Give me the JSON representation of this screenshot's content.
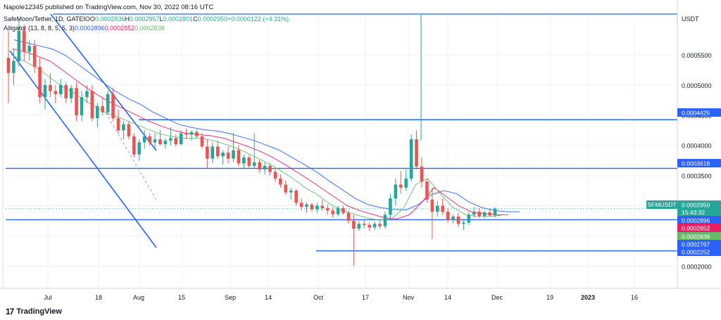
{
  "header": {
    "published": "Napole12345 published on TradingView.com, Nov 30, 2022 08:16 UTC",
    "symbol_line": "SafeMoon/Tether, 1D, GATEIO",
    "ohlc": [
      {
        "label": "O",
        "value": "0.0002836"
      },
      {
        "label": "H",
        "value": "0.0002957"
      },
      {
        "label": "L",
        "value": "0.0002801"
      },
      {
        "label": "C",
        "value": "0.0002950"
      }
    ],
    "change": "+0.0000122 (+4.31%)",
    "alligator_label": "Alligator (13, 8, 8, 5, 5, 3)",
    "alligator_values": [
      "0.0002896",
      "0.0002852",
      "0.0002838"
    ]
  },
  "footer": {
    "brand": "TradingView",
    "brand_mark": "17"
  },
  "colors": {
    "up": "#26a69a",
    "down": "#ef5350",
    "jaw": "#2962ff",
    "teeth": "#e91e63",
    "lips": "#66bb6a",
    "hline": "#2962ff",
    "grid": "#f0f3fa",
    "axis_text": "#131722"
  },
  "chart_data": {
    "type": "candlestick",
    "quote": "USDT",
    "symbol_tag": "SFMUSDT",
    "countdown": "15:43:32",
    "x_ticks": [
      "Jul",
      "18",
      "Aug",
      "15",
      "Sep",
      "14",
      "Oct",
      "17",
      "Nov",
      "14",
      "Dec",
      "19",
      "2023",
      "16"
    ],
    "y_ticks": [
      "0.0005500",
      "0.0005000",
      "0.0004500",
      "0.0004000",
      "0.0003500",
      "0.0003000",
      "0.0002500",
      "0.0002000"
    ],
    "ylim": [
      0.000163,
      0.00062
    ],
    "price_labels": [
      {
        "text": "0.0002950",
        "value": 0.000295,
        "color": "#26a69a"
      },
      {
        "text": "0.0002896",
        "value": 0.0002896,
        "color": "#2962ff"
      },
      {
        "text": "0.0002852",
        "value": 0.0002852,
        "color": "#e91e63"
      },
      {
        "text": "0.0002838",
        "value": 0.0002838,
        "color": "#66bb6a"
      },
      {
        "text": "0.0002767",
        "value": 0.0002767,
        "color": "#2962ff"
      },
      {
        "text": "0.0002252",
        "value": 0.0002252,
        "color": "#2962ff"
      },
      {
        "text": "0.0004425",
        "value": 0.0004425,
        "color": "#2962ff"
      },
      {
        "text": "0.0003618",
        "value": 0.0003618,
        "color": "#2962ff"
      }
    ],
    "horizontal_levels": [
      0.0004425,
      0.0003618,
      0.0002767,
      0.0002252
    ],
    "ohlc": [
      [
        0.000545,
        0.00059,
        0.00047,
        0.00052
      ],
      [
        0.00052,
        0.00056,
        0.0005,
        0.00054
      ],
      [
        0.00054,
        0.00061,
        0.00053,
        0.00059
      ],
      [
        0.00059,
        0.0006,
        0.00054,
        0.000555
      ],
      [
        0.000555,
        0.000575,
        0.00054,
        0.000565
      ],
      [
        0.000565,
        0.000575,
        0.00052,
        0.00053
      ],
      [
        0.00053,
        0.000545,
        0.00047,
        0.00048
      ],
      [
        0.00048,
        0.00051,
        0.00046,
        0.0005
      ],
      [
        0.0005,
        0.00052,
        0.00048,
        0.00049
      ],
      [
        0.00049,
        0.0005,
        0.00047,
        0.000485
      ],
      [
        0.000485,
        0.00051,
        0.00048,
        0.0005
      ],
      [
        0.0005,
        0.000505,
        0.00047,
        0.000478
      ],
      [
        0.000478,
        0.0005,
        0.00047,
        0.000495
      ],
      [
        0.000495,
        0.000505,
        0.00044,
        0.00045
      ],
      [
        0.00045,
        0.00049,
        0.00044,
        0.00048
      ],
      [
        0.00048,
        0.0005,
        0.00047,
        0.00049
      ],
      [
        0.00049,
        0.0005,
        0.00044,
        0.000445
      ],
      [
        0.000445,
        0.00047,
        0.00043,
        0.000465
      ],
      [
        0.000465,
        0.00048,
        0.00045,
        0.000455
      ],
      [
        0.000455,
        0.00049,
        0.00045,
        0.000485
      ],
      [
        0.000485,
        0.000495,
        0.00044,
        0.000445
      ],
      [
        0.000445,
        0.00046,
        0.00042,
        0.000425
      ],
      [
        0.000425,
        0.00044,
        0.00041,
        0.000435
      ],
      [
        0.000435,
        0.00044,
        0.00041,
        0.000415
      ],
      [
        0.000415,
        0.00042,
        0.00038,
        0.000385
      ],
      [
        0.000385,
        0.00041,
        0.000375,
        0.000405
      ],
      [
        0.000405,
        0.000425,
        0.000395,
        0.000415
      ],
      [
        0.000415,
        0.00042,
        0.0004,
        0.000405
      ],
      [
        0.000405,
        0.00042,
        0.000395,
        0.00041
      ],
      [
        0.00041,
        0.000425,
        0.0004,
        0.000402
      ],
      [
        0.000402,
        0.000412,
        0.000395,
        0.000408
      ],
      [
        0.000408,
        0.00043,
        0.0004,
        0.000412
      ],
      [
        0.000412,
        0.000418,
        0.000398,
        0.000402
      ],
      [
        0.000402,
        0.000425,
        0.0004,
        0.00042
      ],
      [
        0.00042,
        0.000428,
        0.00041,
        0.000418
      ],
      [
        0.000418,
        0.000425,
        0.000408,
        0.000422
      ],
      [
        0.000422,
        0.000426,
        0.000412,
        0.000415
      ],
      [
        0.000415,
        0.00042,
        0.000395,
        0.000398
      ],
      [
        0.000398,
        0.00041,
        0.000362,
        0.000378
      ],
      [
        0.000378,
        0.000405,
        0.00037,
        0.000398
      ],
      [
        0.000398,
        0.000408,
        0.000378,
        0.000382
      ],
      [
        0.000382,
        0.000392,
        0.000368,
        0.000388
      ],
      [
        0.000388,
        0.000398,
        0.00037,
        0.000378
      ],
      [
        0.000378,
        0.00042,
        0.000372,
        0.000392
      ],
      [
        0.000392,
        0.0004,
        0.000365,
        0.00037
      ],
      [
        0.00037,
        0.000385,
        0.000362,
        0.00038
      ],
      [
        0.00038,
        0.000384,
        0.000362,
        0.000366
      ],
      [
        0.000366,
        0.00042,
        0.000362,
        0.000372
      ],
      [
        0.000372,
        0.000376,
        0.000355,
        0.00036
      ],
      [
        0.00036,
        0.000372,
        0.000352,
        0.000366
      ],
      [
        0.000366,
        0.00037,
        0.00035,
        0.000356
      ],
      [
        0.000356,
        0.000362,
        0.00034,
        0.000345
      ],
      [
        0.000345,
        0.000352,
        0.00033,
        0.000335
      ],
      [
        0.000335,
        0.000342,
        0.000318,
        0.000322
      ],
      [
        0.000322,
        0.00033,
        0.00031,
        0.000325
      ],
      [
        0.000325,
        0.000328,
        0.0003,
        0.000305
      ],
      [
        0.000305,
        0.000312,
        0.000292,
        0.000298
      ],
      [
        0.000298,
        0.000306,
        0.000288,
        0.000302
      ],
      [
        0.000302,
        0.000305,
        0.00029,
        0.000294
      ],
      [
        0.000294,
        0.000305,
        0.000288,
        0.0003
      ],
      [
        0.0003,
        0.00031,
        0.000292,
        0.000296
      ],
      [
        0.000296,
        0.000302,
        0.000285,
        0.000292
      ],
      [
        0.000292,
        0.000298,
        0.00028,
        0.000286
      ],
      [
        0.000286,
        0.0003,
        0.000282,
        0.000296
      ],
      [
        0.000296,
        0.0003,
        0.000285,
        0.000288
      ],
      [
        0.000288,
        0.000292,
        0.00027,
        0.000275
      ],
      [
        0.000275,
        0.000285,
        0.0002,
        0.000262
      ],
      [
        0.000262,
        0.000275,
        0.000258,
        0.00027
      ],
      [
        0.00027,
        0.000276,
        0.000262,
        0.000268
      ],
      [
        0.000268,
        0.000272,
        0.000258,
        0.000264
      ],
      [
        0.000264,
        0.000274,
        0.00026,
        0.00027
      ],
      [
        0.00027,
        0.000275,
        0.000262,
        0.000266
      ],
      [
        0.000266,
        0.00029,
        0.000262,
        0.000285
      ],
      [
        0.000285,
        0.00032,
        0.00028,
        0.000312
      ],
      [
        0.000312,
        0.000345,
        0.0003,
        0.000335
      ],
      [
        0.000335,
        0.000358,
        0.00032,
        0.00033
      ],
      [
        0.00033,
        0.00036,
        0.000325,
        0.000345
      ],
      [
        0.000345,
        0.000418,
        0.00034,
        0.00041
      ],
      [
        0.00041,
        0.000425,
        0.00036,
        0.000365
      ],
      [
        0.000365,
        0.00038,
        0.00033,
        0.00034
      ],
      [
        0.00034,
        0.000345,
        0.000305,
        0.00031
      ],
      [
        0.00031,
        0.00033,
        0.000245,
        0.00029
      ],
      [
        0.00029,
        0.000308,
        0.000282,
        0.0003
      ],
      [
        0.0003,
        0.000312,
        0.000285,
        0.00029
      ],
      [
        0.00029,
        0.000296,
        0.000272,
        0.000276
      ],
      [
        0.000276,
        0.000285,
        0.00027,
        0.000282
      ],
      [
        0.000282,
        0.000288,
        0.000265,
        0.00027
      ],
      [
        0.00027,
        0.000278,
        0.00026,
        0.000272
      ],
      [
        0.000272,
        0.00029,
        0.000268,
        0.000285
      ],
      [
        0.000285,
        0.000298,
        0.00028,
        0.00029
      ],
      [
        0.00029,
        0.000296,
        0.00028,
        0.000283
      ],
      [
        0.000283,
        0.000292,
        0.00028,
        0.000289
      ],
      [
        0.000289,
        0.000296,
        0.000282,
        0.000284
      ],
      [
        0.000284,
        0.000297,
        0.00028,
        0.000295
      ]
    ],
    "jaw": [
      0.000575,
      0.00057,
      0.000565,
      0.00056,
      0.00055,
      0.000535,
      0.00052,
      0.000505,
      0.00049,
      0.000478,
      0.000468,
      0.000455,
      0.000445,
      0.000435,
      0.00043,
      0.000426,
      0.000424,
      0.00042,
      0.000414,
      0.000408,
      0.0004,
      0.000392,
      0.00038,
      0.000368,
      0.000355,
      0.00034,
      0.000326,
      0.000312,
      0.000302,
      0.000297,
      0.000294,
      0.000293,
      0.000302,
      0.000318,
      0.000325,
      0.00032,
      0.000306,
      0.000297,
      0.000292,
      0.00029,
      0.00029
    ],
    "teeth": [
      0.00056,
      0.000555,
      0.000548,
      0.00054,
      0.000525,
      0.00051,
      0.000495,
      0.000482,
      0.00047,
      0.00046,
      0.00045,
      0.00044,
      0.000432,
      0.000425,
      0.00042,
      0.000418,
      0.000416,
      0.000412,
      0.000405,
      0.000398,
      0.00039,
      0.00038,
      0.000368,
      0.000355,
      0.000342,
      0.000328,
      0.000314,
      0.0003,
      0.000292,
      0.000286,
      0.00028,
      0.000278,
      0.000285,
      0.000305,
      0.00033,
      0.000315,
      0.0003,
      0.00029,
      0.000287,
      0.000285,
      0.000285
    ],
    "lips": [
      0.00055,
      0.00054,
      0.00053,
      0.000515,
      0.0005,
      0.000488,
      0.000475,
      0.000462,
      0.000452,
      0.000445,
      0.000436,
      0.000428,
      0.00042,
      0.000415,
      0.000412,
      0.000412,
      0.00041,
      0.000405,
      0.000398,
      0.00039,
      0.00038,
      0.00037,
      0.000358,
      0.000345,
      0.00033,
      0.000318,
      0.000303,
      0.000292,
      0.000286,
      0.00028,
      0.000276,
      0.000278,
      0.000295,
      0.000335,
      0.000345,
      0.00032,
      0.000298,
      0.000286,
      0.000282,
      0.000282,
      0.000284
    ]
  }
}
